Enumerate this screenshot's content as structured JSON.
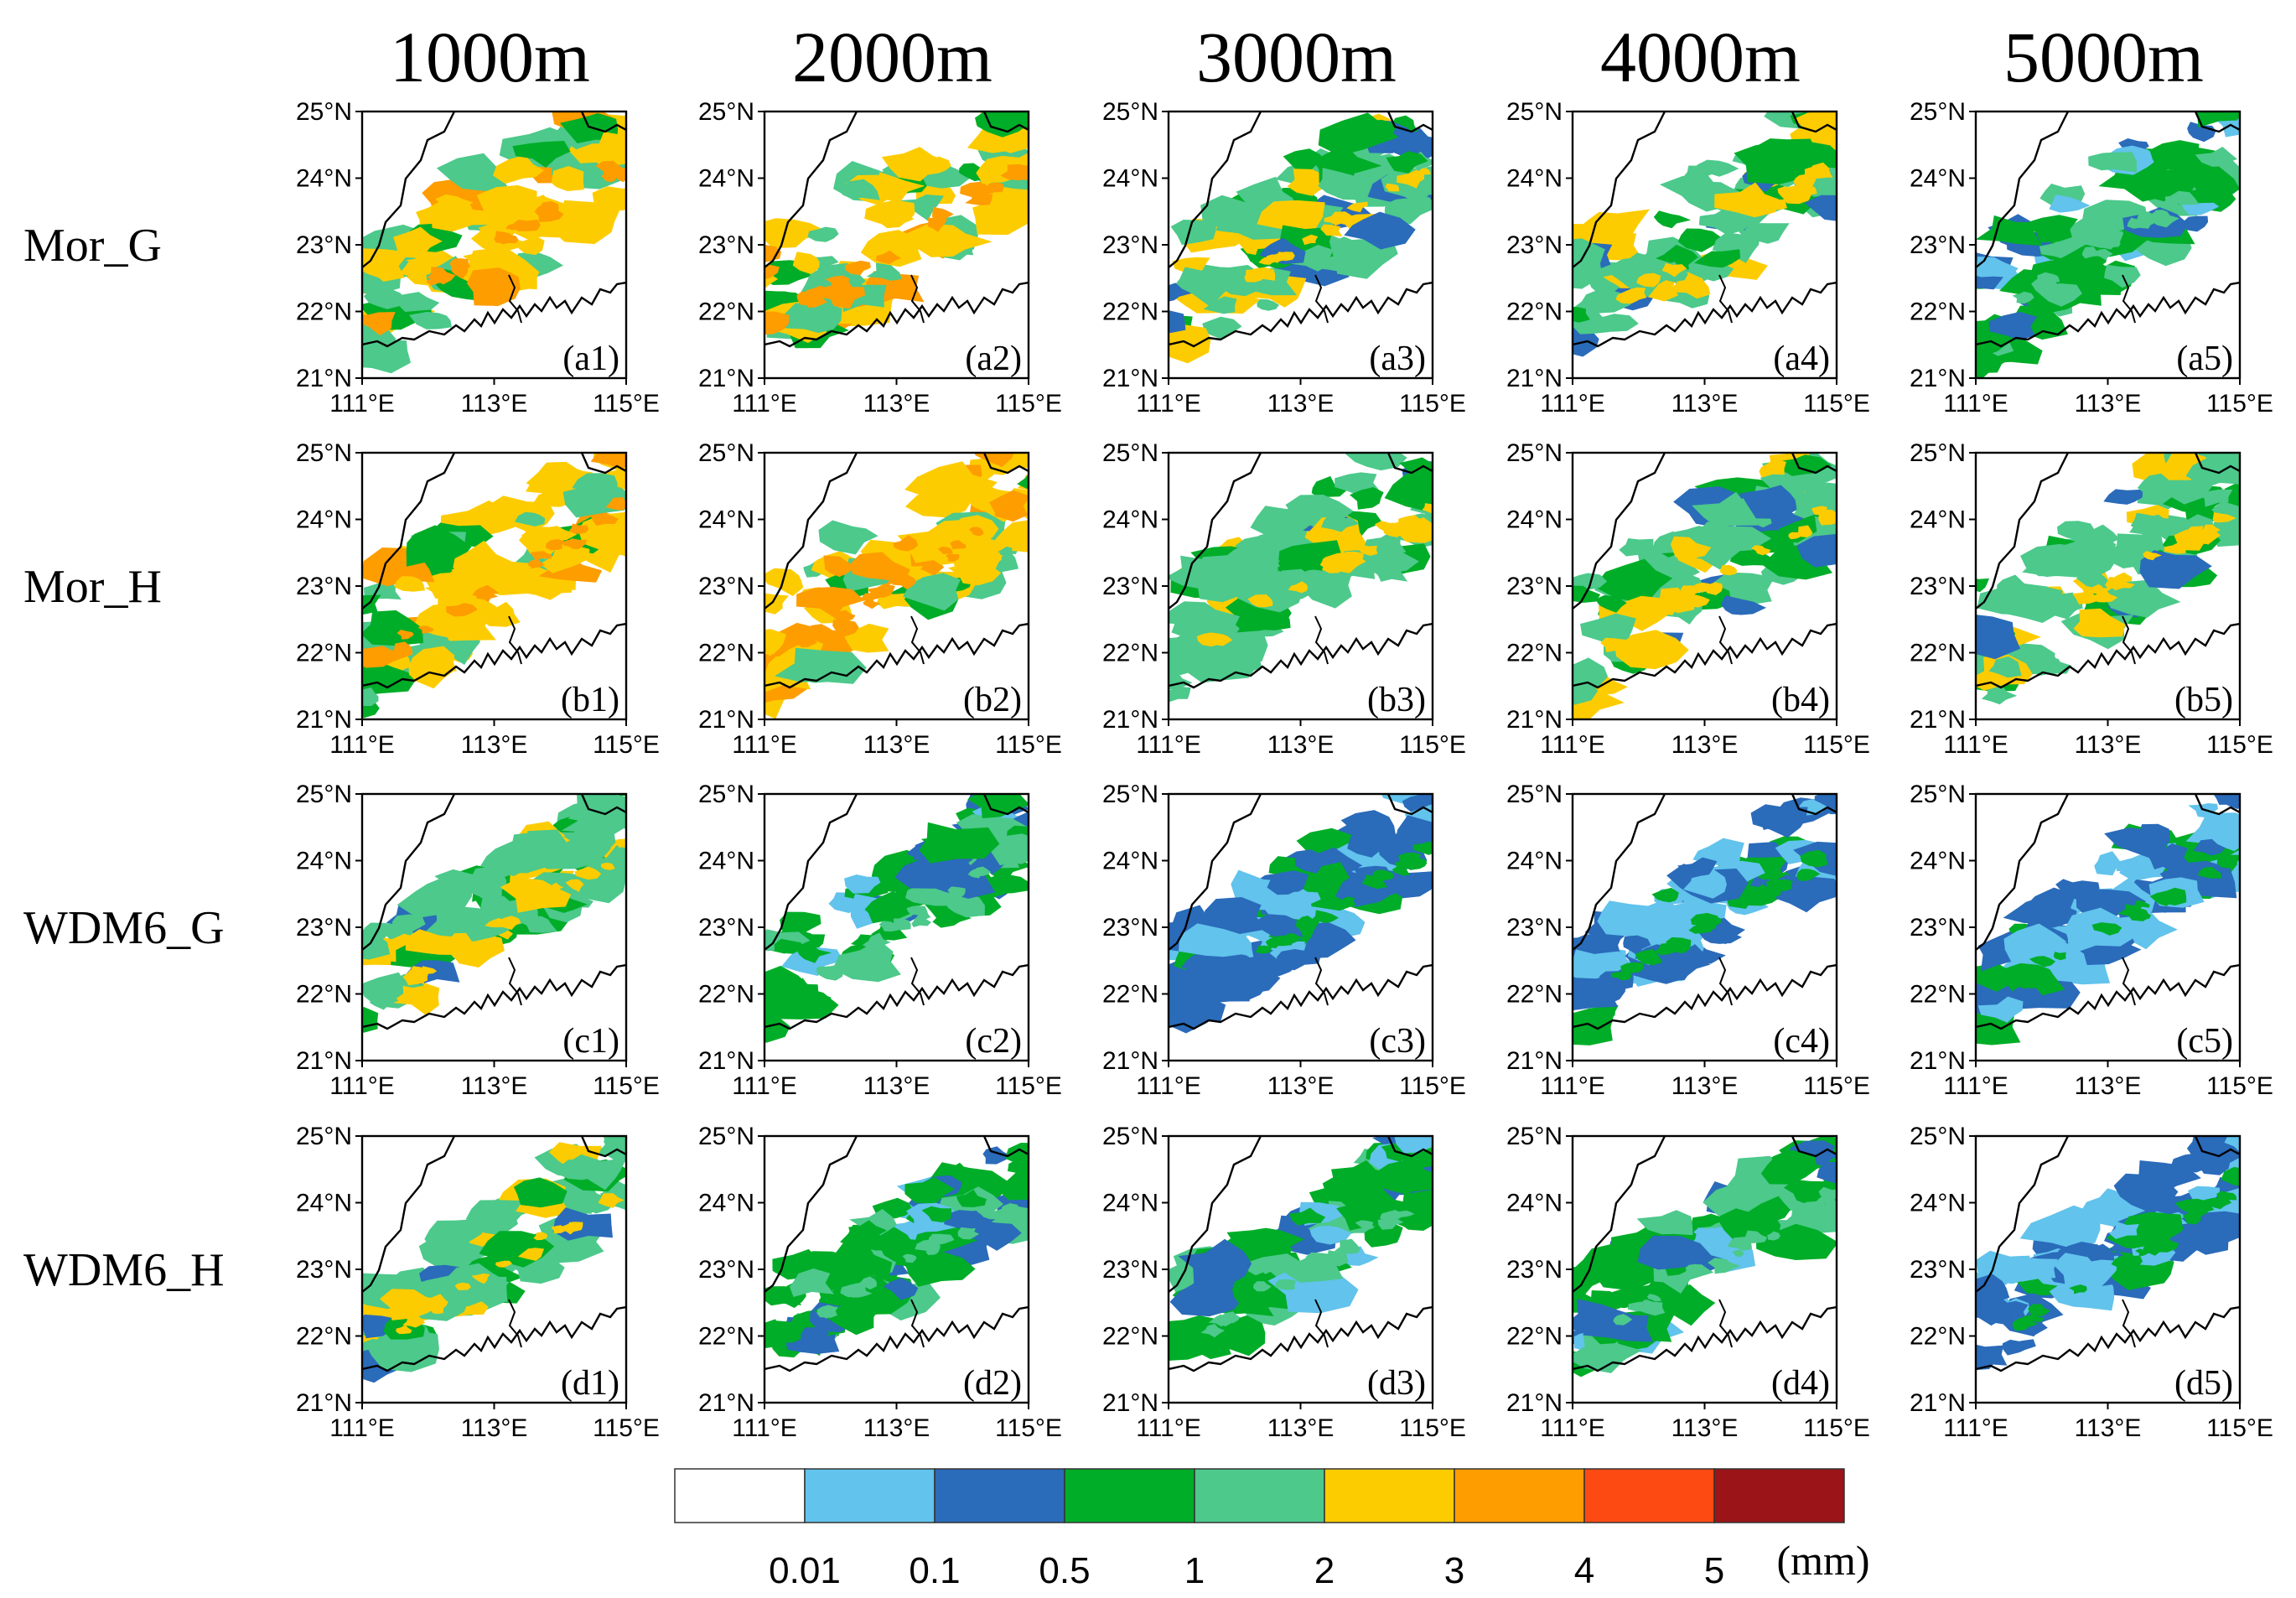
{
  "figure": {
    "column_titles": [
      "1000m",
      "2000m",
      "3000m",
      "4000m",
      "5000m"
    ],
    "row_labels": [
      "Mor_G",
      "Mor_H",
      "WDM6_G",
      "WDM6_H"
    ],
    "panel_labels": [
      [
        "(a1)",
        "(a2)",
        "(a3)",
        "(a4)",
        "(a5)"
      ],
      [
        "(b1)",
        "(b2)",
        "(b3)",
        "(b4)",
        "(b5)"
      ],
      [
        "(c1)",
        "(c2)",
        "(c3)",
        "(c4)",
        "(c5)"
      ],
      [
        "(d1)",
        "(d2)",
        "(d3)",
        "(d4)",
        "(d5)"
      ]
    ],
    "lat_ticks": [
      "25°N",
      "24°N",
      "23°N",
      "22°N",
      "21°N"
    ],
    "lon_ticks": [
      "111°E",
      "113°E",
      "115°E"
    ],
    "colorbar": {
      "ticks": [
        "0.01",
        "0.1",
        "0.5",
        "1",
        "2",
        "3",
        "4",
        "5"
      ],
      "unit": "(mm)",
      "colors": [
        "#ffffff",
        "#62c3ec",
        "#2a6bba",
        "#00ad28",
        "#4cc98b",
        "#fdcc00",
        "#fd9d00",
        "#fc4a12",
        "#9a1418"
      ]
    },
    "panel_dominant_levels": [
      [
        5,
        5,
        4,
        4,
        3
      ],
      [
        5,
        5,
        4,
        4,
        4
      ],
      [
        4,
        3,
        2,
        2,
        2
      ],
      [
        4,
        3,
        3,
        3,
        2
      ]
    ]
  }
}
